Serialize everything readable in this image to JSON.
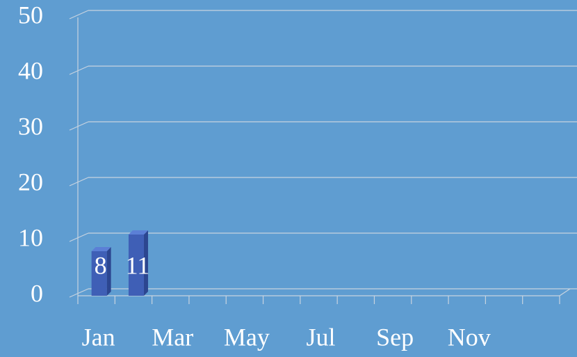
{
  "chart_data": {
    "type": "bar3d",
    "categories": [
      "Jan",
      null,
      "Mar",
      null,
      "May",
      null,
      "Jul",
      null,
      "Sep",
      null,
      "Nov",
      null,
      null
    ],
    "values": [
      8,
      11,
      null,
      null,
      null,
      null,
      null,
      null,
      null,
      null,
      null,
      null,
      null
    ],
    "color": "#3f5fb6",
    "ylim": [
      0,
      50
    ],
    "yticks": [
      0,
      10,
      20,
      30,
      40,
      50
    ],
    "grid": true
  }
}
